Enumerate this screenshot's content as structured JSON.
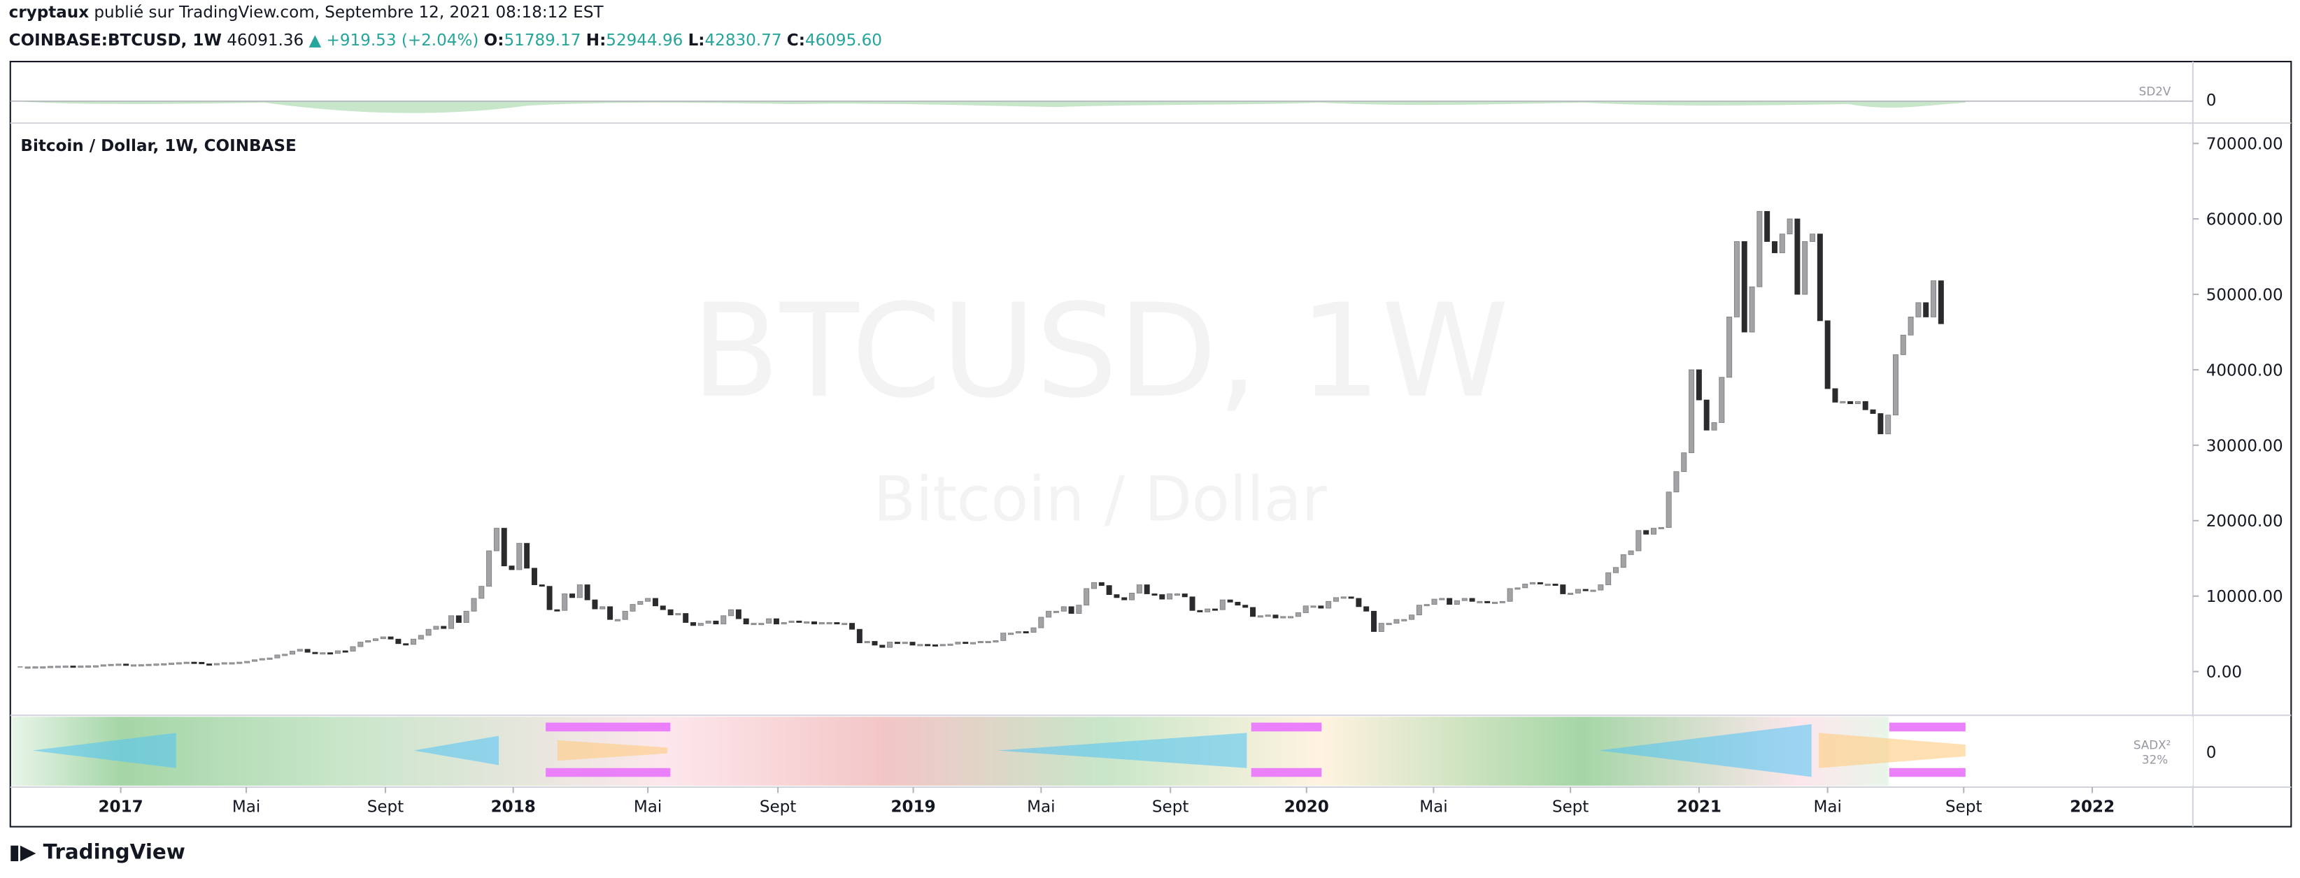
{
  "header": {
    "author": "cryptaux",
    "published": "publié sur TradingView.com, Septembre 12, 2021 08:18:12 EST",
    "symbol": "COINBASE:BTCUSD, 1W",
    "last": "46091.36",
    "change": "▲ +919.53 (+2.04%)",
    "open_label": "O:",
    "open": "51789.17",
    "high_label": "H:",
    "high": "52944.96",
    "low_label": "L:",
    "low": "42830.77",
    "close_label": "C:",
    "close": "46095.60"
  },
  "top_indicator": {
    "name": "SD2V",
    "value": "0"
  },
  "bottom_indicator": {
    "name": "SADX²",
    "sub": "32%",
    "value": "0"
  },
  "watermark": {
    "line1": "BTCUSD, 1W",
    "line2": "Bitcoin / Dollar"
  },
  "footer": {
    "brand": "TradingView"
  },
  "chart_data": {
    "type": "candlestick",
    "title": "Bitcoin / Dollar, 1W, COINBASE",
    "up_color": "#a3a3a6",
    "down_color": "#2b2b2e",
    "values": [
      610,
      620,
      640,
      640,
      700,
      720,
      740,
      710,
      740,
      760,
      780,
      900,
      960,
      1000,
      900,
      900,
      920,
      970,
      1010,
      1050,
      1120,
      1180,
      1250,
      1230,
      1020,
      960,
      1070,
      1180,
      1180,
      1250,
      1350,
      1560,
      1720,
      1800,
      2200,
      2300,
      2700,
      2950,
      2550,
      2500,
      2500,
      2400,
      2750,
      2700,
      3300,
      3900,
      4100,
      4350,
      4600,
      4300,
      3700,
      3600,
      4300,
      4800,
      5600,
      6000,
      5700,
      7400,
      6500,
      8000,
      9700,
      11300,
      16000,
      19000,
      14000,
      13500,
      17000,
      13700,
      11500,
      11300,
      8200,
      8100,
      10300,
      9800,
      11500,
      9500,
      8300,
      8600,
      6900,
      6900,
      8000,
      8900,
      9300,
      9700,
      8700,
      8200,
      7500,
      7700,
      6500,
      6100,
      6400,
      6700,
      6300,
      7400,
      8200,
      7000,
      6300,
      6400,
      6400,
      7000,
      6300,
      6500,
      6700,
      6600,
      6600,
      6300,
      6500,
      6500,
      6300,
      6400,
      5600,
      3800,
      4000,
      3500,
      3200,
      3900,
      3700,
      3900,
      3500,
      3600,
      3550,
      3450,
      3600,
      3650,
      3900,
      3800,
      3850,
      4000,
      4000,
      4100,
      5100,
      5100,
      5300,
      5200,
      5800,
      7200,
      8000,
      8000,
      8600,
      7700,
      8800,
      11000,
      11800,
      11400,
      10200,
      9800,
      9500,
      10400,
      11500,
      10300,
      10200,
      9600,
      10300,
      10300,
      9900,
      8100,
      7900,
      8300,
      8200,
      9500,
      9200,
      8800,
      8500,
      7300,
      7400,
      7500,
      7100,
      7300,
      7300,
      7800,
      8700,
      8700,
      8400,
      9300,
      9800,
      9900,
      9700,
      8600,
      8000,
      5300,
      6400,
      6400,
      6900,
      6900,
      7500,
      8800,
      8900,
      9600,
      9700,
      8900,
      9400,
      9700,
      9300,
      9300,
      9100,
      9200,
      9300,
      11000,
      11100,
      11600,
      11800,
      11600,
      11600,
      11500,
      10300,
      10400,
      10900,
      10700,
      10800,
      11500,
      13100,
      13800,
      15500,
      16000,
      18700,
      18200,
      19000,
      19100,
      23800,
      26500,
      29000,
      40000,
      36000,
      32000,
      33000,
      39000,
      47000,
      57000,
      45000,
      51000,
      61000,
      57000,
      55500,
      58000,
      60000,
      50000,
      57000,
      58000,
      46500,
      37500,
      35700,
      35800,
      35500,
      35800,
      34700,
      34200,
      31500,
      34000,
      42000,
      44600,
      47000,
      48900,
      47000,
      51800,
      46100
    ],
    "xlim": [
      -1.3,
      287.3
    ],
    "xticks": [
      {
        "value": 13.3,
        "label": "2017"
      },
      {
        "value": 29.9,
        "label": "Mai"
      },
      {
        "value": 48.3,
        "label": "Sept"
      },
      {
        "value": 65.2,
        "label": "2018"
      },
      {
        "value": 83,
        "label": "Mai"
      },
      {
        "value": 100.2,
        "label": "Sept"
      },
      {
        "value": 118.1,
        "label": "2019"
      },
      {
        "value": 135,
        "label": "Mai"
      },
      {
        "value": 152.1,
        "label": "Sept"
      },
      {
        "value": 170.1,
        "label": "2020"
      },
      {
        "value": 186.9,
        "label": "Mai"
      },
      {
        "value": 205,
        "label": "Sept"
      },
      {
        "value": 222,
        "label": "2021"
      },
      {
        "value": 239,
        "label": "Mai"
      },
      {
        "value": 257,
        "label": "Sept"
      },
      {
        "value": 274,
        "label": "2022"
      }
    ],
    "ylim": [
      -5800,
      72500
    ],
    "yticks": [
      {
        "value": 0,
        "label": "0.00"
      },
      {
        "value": 10000,
        "label": "10000.00"
      },
      {
        "value": 20000,
        "label": "20000.00"
      },
      {
        "value": 30000,
        "label": "30000.00"
      },
      {
        "value": 40000,
        "label": "40000.00"
      },
      {
        "value": 50000,
        "label": "50000.00"
      },
      {
        "value": 60000,
        "label": "60000.00"
      },
      {
        "value": 70000,
        "label": "70000.00"
      }
    ]
  }
}
